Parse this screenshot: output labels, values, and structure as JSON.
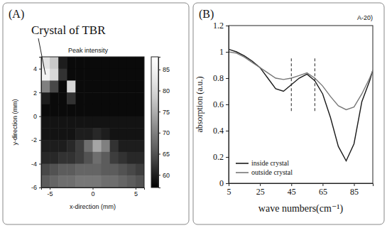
{
  "chart_data": [
    {
      "type": "heatmap",
      "panel": "(A)",
      "annotations": [
        "Crystal of TBR",
        "Peak intensity"
      ],
      "x_label": "x-direction (mm)",
      "y_label": "y-direction (mm)",
      "x": [
        -5.5,
        -4.5,
        -3.5,
        -2.5,
        -1.5,
        -0.5,
        0.5,
        1.5,
        2.5,
        3.5,
        4.5,
        5.5
      ],
      "y": [
        4.5,
        3.5,
        2.5,
        1.5,
        0.5,
        -0.5,
        -1.5,
        -2.5,
        -3.5,
        -4.5,
        -5.5
      ],
      "z": [
        [
          82,
          78,
          60,
          58,
          58,
          58,
          58,
          58,
          58,
          58,
          58,
          58
        ],
        [
          85,
          80,
          62,
          58,
          58,
          58,
          58,
          58,
          58,
          58,
          58,
          58
        ],
        [
          70,
          64,
          58,
          80,
          58,
          58,
          58,
          58,
          58,
          58,
          58,
          58
        ],
        [
          60,
          58,
          58,
          62,
          58,
          58,
          58,
          58,
          58,
          58,
          58,
          58
        ],
        [
          58,
          58,
          58,
          58,
          58,
          58,
          58,
          58,
          58,
          58,
          58,
          58
        ],
        [
          59,
          59,
          59,
          59,
          59,
          59,
          59,
          59,
          59,
          59,
          59,
          59
        ],
        [
          59,
          59,
          59,
          59,
          60,
          60,
          61,
          60,
          59,
          59,
          59,
          59
        ],
        [
          60,
          60,
          60,
          61,
          63,
          68,
          74,
          70,
          62,
          60,
          60,
          60
        ],
        [
          61,
          61,
          62,
          62,
          63,
          65,
          68,
          66,
          63,
          62,
          61,
          61
        ],
        [
          64,
          65,
          66,
          66,
          67,
          67,
          67,
          66,
          66,
          65,
          64,
          63
        ],
        [
          66,
          67,
          68,
          68,
          69,
          69,
          69,
          68,
          68,
          67,
          66,
          65
        ]
      ],
      "xlim": [
        -6,
        6
      ],
      "ylim": [
        -6,
        5
      ],
      "xticks": [
        -5,
        0,
        5
      ],
      "yticks": [
        -6,
        -4,
        -2,
        0,
        2,
        4
      ],
      "colorbar_range": [
        57,
        88
      ],
      "colorbar_ticks": [
        60,
        65,
        70,
        75,
        80,
        85
      ],
      "grid": false
    },
    {
      "type": "line",
      "panel": "(B)",
      "annotations": [
        "A-20)"
      ],
      "x_label": "wave numbers(cm⁻¹)",
      "y_label": "absorption (a.u.)",
      "x": [
        5,
        10,
        15,
        20,
        25,
        30,
        35,
        40,
        45,
        50,
        55,
        60,
        65,
        70,
        75,
        80,
        85,
        90,
        95,
        97
      ],
      "series": [
        {
          "name": "inside crystal",
          "color": "#1a1a1a",
          "values": [
            1.02,
            1.0,
            0.97,
            0.93,
            0.88,
            0.8,
            0.72,
            0.7,
            0.75,
            0.8,
            0.83,
            0.78,
            0.68,
            0.5,
            0.28,
            0.17,
            0.3,
            0.62,
            0.78,
            0.86
          ]
        },
        {
          "name": "outside crystal",
          "color": "#777777",
          "values": [
            1.0,
            0.99,
            0.96,
            0.92,
            0.88,
            0.84,
            0.8,
            0.79,
            0.8,
            0.82,
            0.84,
            0.8,
            0.74,
            0.66,
            0.59,
            0.56,
            0.58,
            0.68,
            0.8,
            0.86
          ]
        }
      ],
      "xlim": [
        5,
        97
      ],
      "ylim": [
        0,
        1.2
      ],
      "xticks": [
        5,
        25,
        45,
        65,
        85
      ],
      "yticks": [
        0,
        0.2,
        0.4,
        0.6,
        0.8,
        1,
        1.2
      ],
      "vlines": [
        {
          "x": 45,
          "ymin": 0.55,
          "ymax": 0.95
        },
        {
          "x": 60,
          "ymin": 0.55,
          "ymax": 0.95
        }
      ],
      "legend": "lower left",
      "grid": false
    }
  ]
}
